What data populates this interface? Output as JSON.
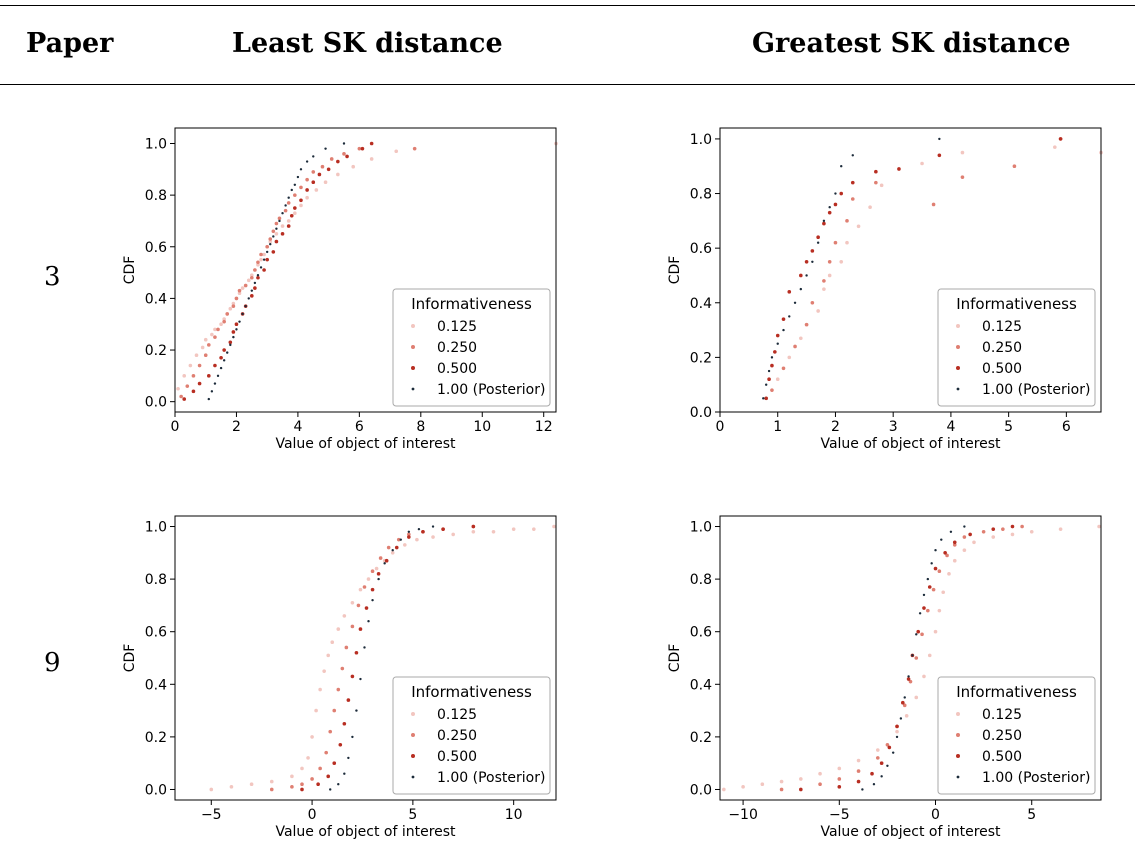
{
  "table": {
    "col_paper": "Paper",
    "col_least": "Least SK distance",
    "col_greatest": "Greatest SK distance",
    "row_labels": [
      "3",
      "9"
    ]
  },
  "legend": {
    "title": "Informativeness",
    "entries": [
      "0.125",
      "0.250",
      "0.500",
      "1.00 (Posterior)"
    ],
    "colors": [
      "#f2c6c0",
      "#df7f72",
      "#b82e22",
      "#1c2b3a"
    ]
  },
  "chart_data": [
    {
      "id": "paper3-least",
      "type": "scatter",
      "xlabel": "Value of object of interest",
      "ylabel": "CDF",
      "xlim": [
        0,
        12.4
      ],
      "ylim": [
        -0.04,
        1.06
      ],
      "xticks": [
        0,
        2,
        4,
        6,
        8,
        10,
        12
      ],
      "xticklabels": [
        "0",
        "2",
        "4",
        "6",
        "8",
        "10",
        "12"
      ],
      "yticks": [
        0,
        0.2,
        0.4,
        0.6,
        0.8,
        1.0
      ],
      "yticklabels": [
        "0.0",
        "0.2",
        "0.4",
        "0.6",
        "0.8",
        "1.0"
      ],
      "legend_position": "lower-right",
      "series": [
        {
          "name": "0.125",
          "x": [
            0.1,
            0.3,
            0.5,
            0.7,
            0.9,
            1.0,
            1.2,
            1.3,
            1.5,
            1.6,
            1.7,
            1.8,
            1.9,
            2.0,
            2.1,
            2.2,
            2.3,
            2.4,
            2.5,
            2.6,
            2.7,
            2.8,
            2.9,
            3.0,
            3.1,
            3.3,
            3.5,
            3.7,
            3.9,
            4.1,
            4.3,
            4.6,
            4.9,
            5.3,
            5.8,
            6.4,
            7.2,
            12.4
          ],
          "y": [
            0.05,
            0.1,
            0.14,
            0.18,
            0.21,
            0.24,
            0.26,
            0.28,
            0.3,
            0.32,
            0.34,
            0.36,
            0.38,
            0.4,
            0.42,
            0.44,
            0.45,
            0.47,
            0.49,
            0.51,
            0.53,
            0.55,
            0.57,
            0.6,
            0.62,
            0.65,
            0.68,
            0.7,
            0.73,
            0.76,
            0.79,
            0.82,
            0.85,
            0.88,
            0.91,
            0.94,
            0.97,
            1.0
          ]
        },
        {
          "name": "0.250",
          "x": [
            0.2,
            0.4,
            0.6,
            0.8,
            1.0,
            1.1,
            1.3,
            1.4,
            1.6,
            1.7,
            1.9,
            2.0,
            2.1,
            2.3,
            2.5,
            2.6,
            2.7,
            2.8,
            3.0,
            3.1,
            3.2,
            3.3,
            3.4,
            3.6,
            3.7,
            3.9,
            4.1,
            4.3,
            4.5,
            4.8,
            5.1,
            5.5,
            6.0,
            7.8
          ],
          "y": [
            0.02,
            0.06,
            0.1,
            0.14,
            0.18,
            0.22,
            0.25,
            0.28,
            0.31,
            0.34,
            0.37,
            0.4,
            0.43,
            0.45,
            0.48,
            0.51,
            0.54,
            0.57,
            0.6,
            0.63,
            0.66,
            0.69,
            0.71,
            0.74,
            0.77,
            0.8,
            0.83,
            0.86,
            0.89,
            0.91,
            0.94,
            0.96,
            0.98,
            0.98
          ]
        },
        {
          "name": "0.500",
          "x": [
            0.3,
            0.6,
            0.8,
            1.1,
            1.3,
            1.5,
            1.6,
            1.8,
            1.9,
            2.0,
            2.2,
            2.3,
            2.5,
            2.6,
            2.7,
            2.9,
            3.0,
            3.2,
            3.3,
            3.5,
            3.7,
            3.8,
            3.9,
            4.1,
            4.3,
            4.5,
            4.7,
            5.0,
            5.3,
            5.6,
            6.1,
            6.4
          ],
          "y": [
            0.01,
            0.04,
            0.07,
            0.1,
            0.14,
            0.17,
            0.2,
            0.23,
            0.27,
            0.3,
            0.34,
            0.37,
            0.41,
            0.44,
            0.48,
            0.51,
            0.55,
            0.58,
            0.62,
            0.65,
            0.68,
            0.72,
            0.75,
            0.78,
            0.82,
            0.85,
            0.88,
            0.9,
            0.93,
            0.95,
            0.98,
            1.0
          ]
        },
        {
          "name": "1.00 (Posterior)",
          "x": [
            1.1,
            1.2,
            1.3,
            1.4,
            1.5,
            1.6,
            1.7,
            1.8,
            1.9,
            2.0,
            2.1,
            2.2,
            2.3,
            2.4,
            2.5,
            2.6,
            2.7,
            2.8,
            2.9,
            3.0,
            3.1,
            3.2,
            3.3,
            3.4,
            3.5,
            3.6,
            3.7,
            3.8,
            3.9,
            4.0,
            4.1,
            4.3,
            4.5,
            4.9,
            5.5
          ],
          "y": [
            0.01,
            0.04,
            0.07,
            0.1,
            0.13,
            0.16,
            0.19,
            0.22,
            0.25,
            0.28,
            0.31,
            0.34,
            0.37,
            0.4,
            0.43,
            0.46,
            0.49,
            0.52,
            0.55,
            0.58,
            0.61,
            0.64,
            0.67,
            0.7,
            0.73,
            0.76,
            0.79,
            0.82,
            0.84,
            0.87,
            0.9,
            0.93,
            0.95,
            0.98,
            1.0
          ]
        }
      ]
    },
    {
      "id": "paper3-greatest",
      "type": "scatter",
      "xlabel": "Value of object of interest",
      "ylabel": "CDF",
      "xlim": [
        0,
        6.6
      ],
      "ylim": [
        0,
        1.04
      ],
      "xticks": [
        0,
        1,
        2,
        3,
        4,
        5,
        6
      ],
      "xticklabels": [
        "0",
        "1",
        "2",
        "3",
        "4",
        "5",
        "6"
      ],
      "yticks": [
        0,
        0.2,
        0.4,
        0.6,
        0.8,
        1.0
      ],
      "yticklabels": [
        "0.0",
        "0.2",
        "0.4",
        "0.6",
        "0.8",
        "1.0"
      ],
      "legend_position": "lower-right",
      "series": [
        {
          "name": "0.125",
          "x": [
            1.0,
            1.2,
            1.4,
            1.5,
            1.7,
            1.8,
            1.9,
            2.1,
            2.2,
            2.4,
            2.6,
            2.8,
            3.5,
            4.2,
            5.8,
            6.6
          ],
          "y": [
            0.12,
            0.2,
            0.27,
            0.32,
            0.37,
            0.45,
            0.5,
            0.55,
            0.62,
            0.68,
            0.75,
            0.83,
            0.91,
            0.95,
            0.97,
            0.95
          ]
        },
        {
          "name": "0.250",
          "x": [
            0.9,
            1.1,
            1.3,
            1.5,
            1.6,
            1.8,
            1.9,
            2.0,
            2.2,
            2.3,
            2.7,
            3.7,
            4.2,
            5.1,
            5.9
          ],
          "y": [
            0.08,
            0.16,
            0.24,
            0.32,
            0.4,
            0.48,
            0.55,
            0.62,
            0.7,
            0.78,
            0.84,
            0.76,
            0.86,
            0.9,
            1.0
          ]
        },
        {
          "name": "0.500",
          "x": [
            0.8,
            0.85,
            0.9,
            0.95,
            1.0,
            1.1,
            1.2,
            1.4,
            1.5,
            1.6,
            1.7,
            1.8,
            1.9,
            2.0,
            2.1,
            2.3,
            2.7,
            3.1,
            3.8,
            5.9
          ],
          "y": [
            0.05,
            0.12,
            0.17,
            0.22,
            0.28,
            0.34,
            0.44,
            0.5,
            0.55,
            0.59,
            0.64,
            0.69,
            0.73,
            0.76,
            0.8,
            0.84,
            0.88,
            0.89,
            0.94,
            1.0
          ]
        },
        {
          "name": "1.00 (Posterior)",
          "x": [
            0.75,
            0.8,
            0.85,
            0.9,
            1.0,
            1.1,
            1.2,
            1.3,
            1.4,
            1.5,
            1.6,
            1.7,
            1.8,
            1.9,
            2.0,
            2.1,
            2.3,
            3.8
          ],
          "y": [
            0.05,
            0.1,
            0.15,
            0.2,
            0.25,
            0.3,
            0.35,
            0.4,
            0.45,
            0.5,
            0.55,
            0.62,
            0.7,
            0.75,
            0.8,
            0.9,
            0.94,
            1.0
          ]
        }
      ]
    },
    {
      "id": "paper9-least",
      "type": "scatter",
      "xlabel": "Value of object of interest",
      "ylabel": "CDF",
      "xlim": [
        -6.8,
        12.1
      ],
      "ylim": [
        -0.04,
        1.04
      ],
      "xticks": [
        -5,
        0,
        5,
        10
      ],
      "xticklabels": [
        "−5",
        "0",
        "5",
        "10"
      ],
      "yticks": [
        0,
        0.2,
        0.4,
        0.6,
        0.8,
        1.0
      ],
      "yticklabels": [
        "0.0",
        "0.2",
        "0.4",
        "0.6",
        "0.8",
        "1.0"
      ],
      "legend_position": "lower-right",
      "series": [
        {
          "name": "0.125",
          "x": [
            -5.0,
            -4.0,
            -3.0,
            -2.0,
            -1.0,
            -0.5,
            -0.2,
            0.0,
            0.2,
            0.4,
            0.6,
            0.8,
            1.0,
            1.3,
            1.6,
            2.0,
            2.4,
            2.8,
            3.2,
            3.6,
            4.0,
            4.6,
            5.2,
            6.0,
            7.0,
            8.0,
            9.0,
            10.0,
            11.0,
            12.0
          ],
          "y": [
            0.0,
            0.01,
            0.02,
            0.03,
            0.05,
            0.08,
            0.12,
            0.2,
            0.3,
            0.38,
            0.45,
            0.51,
            0.56,
            0.61,
            0.66,
            0.71,
            0.76,
            0.8,
            0.84,
            0.87,
            0.9,
            0.93,
            0.95,
            0.96,
            0.97,
            0.98,
            0.98,
            0.99,
            0.99,
            1.0
          ]
        },
        {
          "name": "0.250",
          "x": [
            -2.0,
            -1.0,
            -0.5,
            0.0,
            0.4,
            0.7,
            0.9,
            1.1,
            1.3,
            1.5,
            1.7,
            2.0,
            2.3,
            2.6,
            3.0,
            3.4,
            3.8,
            4.3,
            4.8,
            5.5,
            6.5,
            8.0
          ],
          "y": [
            0.0,
            0.01,
            0.02,
            0.04,
            0.08,
            0.14,
            0.22,
            0.3,
            0.38,
            0.46,
            0.54,
            0.62,
            0.7,
            0.77,
            0.83,
            0.88,
            0.92,
            0.95,
            0.97,
            0.98,
            0.99,
            1.0
          ]
        },
        {
          "name": "0.500",
          "x": [
            -0.5,
            0.3,
            0.8,
            1.1,
            1.4,
            1.6,
            1.8,
            2.0,
            2.2,
            2.4,
            2.7,
            3.0,
            3.3,
            3.7,
            4.2,
            4.8,
            5.5,
            6.5,
            8.0
          ],
          "y": [
            0.0,
            0.02,
            0.05,
            0.1,
            0.17,
            0.25,
            0.34,
            0.43,
            0.52,
            0.61,
            0.69,
            0.76,
            0.82,
            0.87,
            0.92,
            0.96,
            0.98,
            0.99,
            1.0
          ]
        },
        {
          "name": "1.00 (Posterior)",
          "x": [
            0.9,
            1.3,
            1.6,
            1.8,
            2.0,
            2.2,
            2.4,
            2.6,
            2.8,
            3.0,
            3.3,
            3.6,
            4.0,
            4.4,
            4.8,
            5.3,
            6.0
          ],
          "y": [
            0.0,
            0.02,
            0.06,
            0.12,
            0.2,
            0.3,
            0.42,
            0.54,
            0.64,
            0.72,
            0.8,
            0.86,
            0.91,
            0.95,
            0.98,
            0.99,
            1.0
          ]
        }
      ]
    },
    {
      "id": "paper9-greatest",
      "type": "scatter",
      "xlabel": "Value of object of interest",
      "ylabel": "CDF",
      "xlim": [
        -11.2,
        8.6
      ],
      "ylim": [
        -0.04,
        1.04
      ],
      "xticks": [
        -10,
        -5,
        0,
        5
      ],
      "xticklabels": [
        "−10",
        "−5",
        "0",
        "5"
      ],
      "yticks": [
        0,
        0.2,
        0.4,
        0.6,
        0.8,
        1.0
      ],
      "yticklabels": [
        "0.0",
        "0.2",
        "0.4",
        "0.6",
        "0.8",
        "1.0"
      ],
      "legend_position": "lower-right",
      "series": [
        {
          "name": "0.125",
          "x": [
            -11.0,
            -10.0,
            -9.0,
            -8.0,
            -7.0,
            -6.0,
            -5.0,
            -4.0,
            -3.0,
            -2.0,
            -1.5,
            -1.0,
            -0.6,
            -0.3,
            0.0,
            0.2,
            0.4,
            0.7,
            1.0,
            1.5,
            2.0,
            3.0,
            4.0,
            5.0,
            6.5,
            8.5
          ],
          "y": [
            0.0,
            0.01,
            0.02,
            0.03,
            0.04,
            0.06,
            0.08,
            0.11,
            0.15,
            0.22,
            0.28,
            0.35,
            0.43,
            0.51,
            0.6,
            0.68,
            0.75,
            0.82,
            0.87,
            0.91,
            0.94,
            0.96,
            0.97,
            0.98,
            0.99,
            1.0
          ]
        },
        {
          "name": "0.250",
          "x": [
            -8.0,
            -6.0,
            -5.0,
            -4.0,
            -3.0,
            -2.5,
            -2.0,
            -1.6,
            -1.3,
            -1.0,
            -0.7,
            -0.4,
            -0.1,
            0.2,
            0.6,
            1.0,
            1.5,
            2.5,
            3.5,
            4.5
          ],
          "y": [
            0.0,
            0.02,
            0.04,
            0.07,
            0.12,
            0.17,
            0.24,
            0.32,
            0.41,
            0.5,
            0.59,
            0.68,
            0.76,
            0.83,
            0.89,
            0.93,
            0.96,
            0.98,
            0.99,
            1.0
          ]
        },
        {
          "name": "0.500",
          "x": [
            -7.0,
            -5.0,
            -4.0,
            -3.3,
            -2.8,
            -2.4,
            -2.0,
            -1.7,
            -1.4,
            -1.2,
            -0.9,
            -0.6,
            -0.3,
            0.0,
            0.5,
            1.0,
            1.8,
            3.0,
            4.0
          ],
          "y": [
            0.0,
            0.01,
            0.03,
            0.06,
            0.1,
            0.16,
            0.24,
            0.33,
            0.42,
            0.51,
            0.6,
            0.69,
            0.77,
            0.84,
            0.9,
            0.94,
            0.97,
            0.99,
            1.0
          ]
        },
        {
          "name": "1.00 (Posterior)",
          "x": [
            -3.8,
            -3.2,
            -2.8,
            -2.5,
            -2.2,
            -2.0,
            -1.8,
            -1.6,
            -1.4,
            -1.2,
            -1.0,
            -0.8,
            -0.6,
            -0.4,
            -0.2,
            0.0,
            0.3,
            0.8,
            1.5
          ],
          "y": [
            0.0,
            0.02,
            0.05,
            0.09,
            0.14,
            0.2,
            0.27,
            0.35,
            0.43,
            0.51,
            0.59,
            0.67,
            0.74,
            0.8,
            0.86,
            0.91,
            0.95,
            0.98,
            1.0
          ]
        }
      ]
    }
  ]
}
